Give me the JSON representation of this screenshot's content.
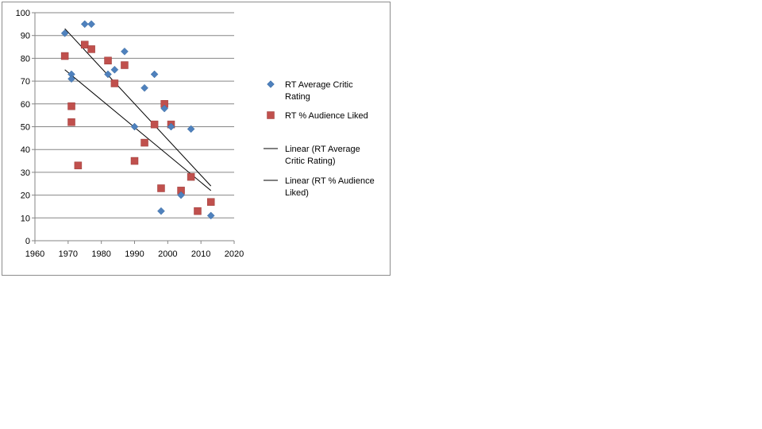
{
  "chart_data": {
    "type": "scatter",
    "title": "",
    "xlabel": "",
    "ylabel": "",
    "xlim": [
      1960,
      2020
    ],
    "ylim": [
      0,
      100
    ],
    "x_ticks": [
      1960,
      1970,
      1980,
      1990,
      2000,
      2010,
      2020
    ],
    "y_ticks": [
      0,
      10,
      20,
      30,
      40,
      50,
      60,
      70,
      80,
      90,
      100
    ],
    "grid": "horizontal",
    "legend_position": "right",
    "series": [
      {
        "name": "RT Average Critic Rating",
        "marker": "diamond",
        "color": "#4f81bd",
        "points": [
          [
            1969,
            91
          ],
          [
            1971,
            73
          ],
          [
            1971,
            71
          ],
          [
            1975,
            95
          ],
          [
            1977,
            95
          ],
          [
            1982,
            73
          ],
          [
            1984,
            75
          ],
          [
            1987,
            83
          ],
          [
            1990,
            50
          ],
          [
            1993,
            67
          ],
          [
            1996,
            73
          ],
          [
            1998,
            13
          ],
          [
            1999,
            58
          ],
          [
            2001,
            50
          ],
          [
            2004,
            20
          ],
          [
            2007,
            49
          ],
          [
            2013,
            11
          ]
        ]
      },
      {
        "name": "RT % Audience Liked",
        "marker": "square",
        "color": "#c0504d",
        "points": [
          [
            1969,
            81
          ],
          [
            1971,
            59
          ],
          [
            1971,
            52
          ],
          [
            1973,
            33
          ],
          [
            1975,
            86
          ],
          [
            1977,
            84
          ],
          [
            1982,
            79
          ],
          [
            1984,
            69
          ],
          [
            1987,
            77
          ],
          [
            1990,
            35
          ],
          [
            1993,
            43
          ],
          [
            1996,
            51
          ],
          [
            1998,
            23
          ],
          [
            1999,
            60
          ],
          [
            2001,
            51
          ],
          [
            2004,
            22
          ],
          [
            2007,
            28
          ],
          [
            2009,
            13
          ],
          [
            2013,
            17
          ]
        ]
      }
    ],
    "trendlines": [
      {
        "name": "Linear (RT Average Critic Rating)",
        "legend_lines": [
          "Linear (RT Average",
          "Critic Rating)"
        ],
        "color": "#000000",
        "from": [
          1969,
          93
        ],
        "to": [
          2013,
          24
        ]
      },
      {
        "name": "Linear (RT % Audience Liked)",
        "legend_lines": [
          "Linear (RT % Audience",
          "Liked)"
        ],
        "color": "#000000",
        "from": [
          1969,
          75
        ],
        "to": [
          2013,
          22
        ]
      }
    ],
    "legend": [
      {
        "series": 0,
        "lines": [
          "RT Average Critic",
          "Rating"
        ]
      },
      {
        "series": 1,
        "lines": [
          "RT % Audience Liked"
        ]
      }
    ]
  }
}
